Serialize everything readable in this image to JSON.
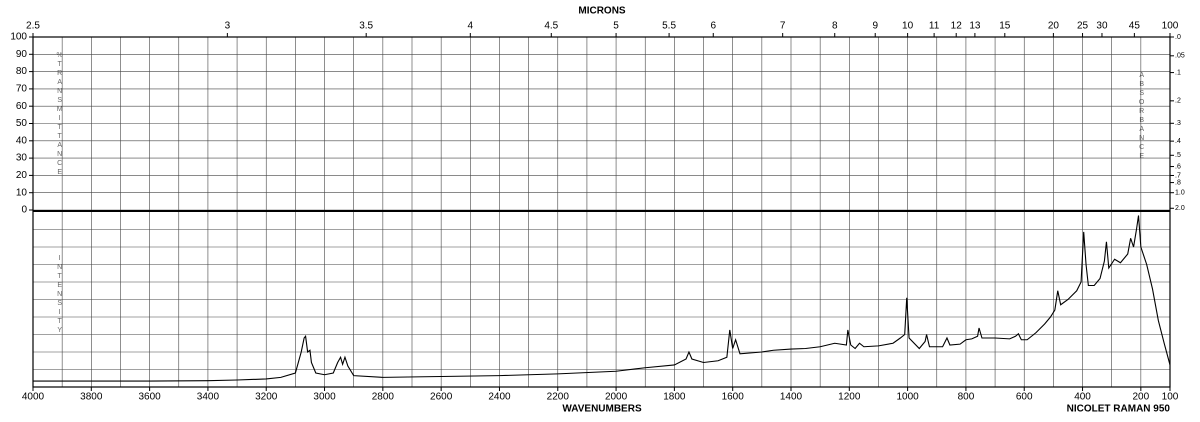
{
  "chart_data": {
    "type": "line",
    "x2_label": "MICRONS",
    "x_label": "WAVENUMBERS",
    "caption": "NICOLET RAMAN 950",
    "transmittance_label": "%TRANSMITTANCE",
    "absorbance_label": "ABSORBANCE",
    "y_label": "INTENSITY",
    "xlim": [
      4000,
      100
    ],
    "xticks": [
      4000,
      3800,
      3600,
      3400,
      3200,
      3000,
      2800,
      2600,
      2400,
      2200,
      2000,
      1800,
      1600,
      1400,
      1200,
      1000,
      800,
      600,
      400,
      200,
      100
    ],
    "x2lim": [
      2.5,
      100
    ],
    "x2ticks": [
      2.5,
      3,
      3.5,
      4,
      4.5,
      5,
      5.5,
      6,
      7,
      8,
      9,
      10,
      11,
      12,
      13,
      15,
      20,
      25,
      30,
      45,
      100
    ],
    "transmittance_lim": [
      0,
      100
    ],
    "transmittance_ticks": [
      100,
      90,
      80,
      70,
      60,
      50,
      40,
      30,
      20,
      10,
      0
    ],
    "absorbance_ticks": [
      {
        "value": 0,
        "label": ".0"
      },
      {
        "value": 0.05,
        "label": ".05"
      },
      {
        "value": 0.1,
        "label": ".1"
      },
      {
        "value": 0.2,
        "label": ".2"
      },
      {
        "value": 0.3,
        "label": ".3"
      },
      {
        "value": 0.4,
        "label": ".4"
      },
      {
        "value": 0.5,
        "label": ".5"
      },
      {
        "value": 0.6,
        "label": ".6"
      },
      {
        "value": 0.7,
        "label": ".7"
      },
      {
        "value": 0.8,
        "label": ".8"
      },
      {
        "value": 1,
        "label": "1.0"
      },
      {
        "value": 2,
        "label": "2.0"
      }
    ],
    "ylim": [
      0,
      100
    ],
    "color": "#000000",
    "grid": true,
    "x": [
      4000,
      3800,
      3600,
      3400,
      3300,
      3200,
      3150,
      3100,
      3080,
      3070,
      3065,
      3058,
      3050,
      3045,
      3030,
      3000,
      2970,
      2955,
      2945,
      2938,
      2930,
      2920,
      2900,
      2800,
      2600,
      2400,
      2200,
      2000,
      1900,
      1800,
      1760,
      1750,
      1740,
      1700,
      1650,
      1620,
      1610,
      1600,
      1590,
      1575,
      1500,
      1460,
      1400,
      1350,
      1300,
      1250,
      1210,
      1205,
      1195,
      1180,
      1165,
      1150,
      1100,
      1050,
      1025,
      1010,
      1003,
      995,
      960,
      940,
      935,
      925,
      880,
      865,
      855,
      820,
      800,
      780,
      760,
      755,
      745,
      700,
      650,
      630,
      620,
      610,
      590,
      560,
      530,
      510,
      495,
      485,
      475,
      450,
      420,
      405,
      396,
      388,
      380,
      360,
      340,
      325,
      318,
      310,
      290,
      270,
      245,
      235,
      225,
      215,
      208,
      200,
      180,
      160,
      140,
      120,
      100
    ],
    "values": [
      3.4,
      3.4,
      3.4,
      3.6,
      4,
      4.6,
      5.5,
      8,
      20,
      28,
      29,
      20,
      21,
      14,
      8,
      7,
      8,
      14,
      17,
      13,
      17,
      12,
      6.5,
      5.5,
      6,
      6.5,
      7.5,
      9,
      11,
      12.6,
      16,
      20,
      16,
      14,
      15,
      17,
      32.6,
      22,
      27,
      19,
      20,
      21,
      21.7,
      22,
      23,
      25,
      24,
      32.6,
      24,
      22,
      25,
      23,
      23.5,
      25,
      28,
      30,
      51,
      28,
      22,
      26,
      30,
      23,
      23,
      28,
      24,
      24.5,
      27,
      27.5,
      29,
      33.7,
      28,
      28,
      27.5,
      29,
      30.4,
      27,
      27,
      31,
      36,
      40,
      44,
      55,
      47,
      50,
      55,
      60,
      88.6,
      70,
      58,
      58,
      62,
      72,
      83,
      68,
      73,
      71,
      76,
      85,
      80,
      90,
      98,
      80,
      70,
      56,
      38,
      25,
      12.6
    ]
  }
}
